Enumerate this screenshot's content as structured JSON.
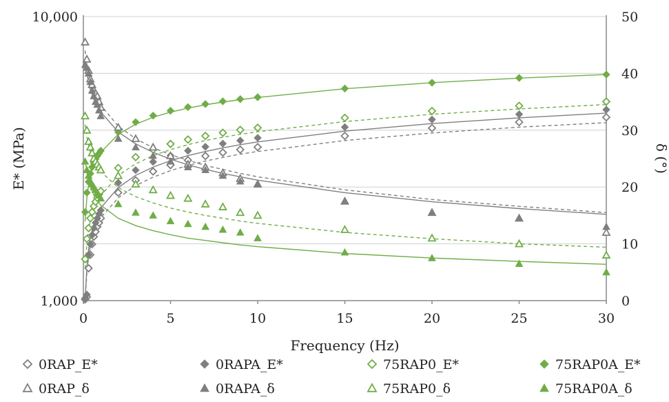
{
  "chart_data": {
    "type": "scatter",
    "title": "",
    "xlabel": "Frequency (Hz)",
    "ylabel_left": "E* (MPa)",
    "ylabel_right": "δ (°)",
    "xlim": [
      0,
      30
    ],
    "ylim_left": [
      1000,
      10000
    ],
    "ylim_right": [
      0,
      50
    ],
    "left_scale": "log",
    "grid": true,
    "legend_position": "bottom",
    "x_ticks": [
      "0",
      "5",
      "10",
      "15",
      "20",
      "25",
      "30"
    ],
    "y_left_ticks": [
      "1,000",
      "10,000"
    ],
    "y_right_ticks": [
      "0",
      "10",
      "20",
      "30",
      "40",
      "50"
    ],
    "x": [
      0.1,
      0.2,
      0.3,
      0.4,
      0.5,
      0.6,
      0.7,
      0.8,
      0.9,
      1,
      2,
      3,
      4,
      5,
      6,
      7,
      8,
      9,
      10,
      15,
      20,
      25,
      30
    ],
    "series": [
      {
        "name": "0RAP_E*",
        "axis": "left",
        "color": "#7f7f7f",
        "marker": "diamond-open",
        "fit": "dashed",
        "values": [
          1010,
          1030,
          1300,
          1450,
          1580,
          1680,
          1750,
          1820,
          1880,
          1950,
          2400,
          2650,
          2850,
          3000,
          3120,
          3230,
          3320,
          3400,
          3470,
          3800,
          4050,
          4250,
          4420
        ],
        "fit_values": [
          1000,
          1250,
          1430,
          1550,
          1650,
          1730,
          1800,
          1860,
          1910,
          1960,
          2300,
          2540,
          2720,
          2870,
          2990,
          3100,
          3190,
          3280,
          3350,
          3660,
          3890,
          4080,
          4230
        ]
      },
      {
        "name": "0RAPA_E*",
        "axis": "left",
        "color": "#7f7f7f",
        "marker": "diamond-filled",
        "fit": "solid",
        "values": [
          1020,
          1050,
          1450,
          1580,
          1700,
          1800,
          1880,
          1950,
          2020,
          2080,
          2600,
          2880,
          3080,
          3240,
          3370,
          3480,
          3570,
          3660,
          3740,
          4080,
          4340,
          4530,
          4700
        ],
        "fit_values": [
          1000,
          1320,
          1520,
          1660,
          1770,
          1860,
          1940,
          2010,
          2070,
          2120,
          2500,
          2760,
          2950,
          3110,
          3240,
          3350,
          3450,
          3540,
          3620,
          3950,
          4200,
          4400,
          4570
        ]
      },
      {
        "name": "75RAP0_E*",
        "axis": "left",
        "color": "#70ad47",
        "marker": "diamond-open",
        "fit": "dashed",
        "values": [
          1400,
          1650,
          1800,
          1950,
          2050,
          2150,
          2230,
          2300,
          2370,
          2430,
          2930,
          3200,
          3400,
          3560,
          3690,
          3800,
          3900,
          3990,
          4060,
          4400,
          4650,
          4850,
          5020
        ],
        "fit_values": [
          1300,
          1600,
          1780,
          1910,
          2010,
          2090,
          2170,
          2230,
          2290,
          2340,
          2760,
          3030,
          3240,
          3400,
          3540,
          3660,
          3760,
          3850,
          3930,
          4270,
          4530,
          4730,
          4900
        ]
      },
      {
        "name": "75RAP0A_E*",
        "axis": "left",
        "color": "#70ad47",
        "marker": "diamond-filled",
        "fit": "solid",
        "values": [
          2050,
          2400,
          2620,
          2800,
          2950,
          3050,
          3150,
          3230,
          3300,
          3370,
          3920,
          4250,
          4480,
          4660,
          4800,
          4920,
          5030,
          5120,
          5200,
          5580,
          5850,
          6080,
          6250
        ],
        "fit_values": [
          1900,
          2300,
          2560,
          2740,
          2880,
          3000,
          3100,
          3190,
          3260,
          3330,
          3850,
          4180,
          4420,
          4610,
          4760,
          4890,
          5000,
          5100,
          5190,
          5570,
          5850,
          6070,
          6250
        ]
      },
      {
        "name": "0RAP_δ",
        "axis": "right",
        "color": "#7f7f7f",
        "marker": "triangle-open",
        "fit": "dashed",
        "values": [
          45.5,
          42.5,
          40.5,
          39,
          38,
          37,
          36.5,
          36,
          35,
          34,
          30.5,
          28.5,
          27,
          25.5,
          24,
          23.5,
          22.5,
          21.5,
          20.5,
          17.5,
          15.5,
          14.5,
          12
        ],
        "fit_values": [
          44,
          41.5,
          39.8,
          38.5,
          37.5,
          36.7,
          36,
          35.4,
          34.9,
          34.4,
          30.7,
          28.5,
          26.9,
          25.7,
          24.7,
          23.8,
          23.1,
          22.4,
          21.8,
          19.5,
          17.8,
          16.6,
          15.5
        ]
      },
      {
        "name": "0RAPA_δ",
        "axis": "right",
        "color": "#7f7f7f",
        "marker": "triangle-filled",
        "fit": "solid",
        "values": [
          41.5,
          41,
          40,
          38.5,
          37,
          36,
          35,
          34.5,
          33.5,
          32.5,
          28.5,
          27,
          25.5,
          24.5,
          23.5,
          23,
          22,
          21,
          20.5,
          17.5,
          15.5,
          14.5,
          13
        ],
        "fit_values": [
          42.5,
          40,
          38.4,
          37.2,
          36.3,
          35.5,
          34.8,
          34.2,
          33.7,
          33.2,
          29.7,
          27.6,
          26.1,
          24.9,
          23.9,
          23.1,
          22.4,
          21.8,
          21.2,
          19,
          17.4,
          16.2,
          15.2
        ]
      },
      {
        "name": "75RAP0_δ",
        "axis": "right",
        "color": "#70ad47",
        "marker": "triangle-open",
        "fit": "dashed",
        "values": [
          32.5,
          30,
          28,
          27,
          26,
          25,
          24.5,
          24,
          23.5,
          23,
          22,
          20.5,
          19.5,
          18.5,
          18,
          17,
          16.5,
          15.5,
          15,
          12.5,
          11,
          10,
          8
        ],
        "fit_values": [
          31,
          28.8,
          27.3,
          26.2,
          25.4,
          24.7,
          24.1,
          23.6,
          23.1,
          22.7,
          19.9,
          18.3,
          17.2,
          16.3,
          15.6,
          15,
          14.5,
          14,
          13.6,
          12,
          10.9,
          10,
          9.4
        ]
      },
      {
        "name": "75RAP0A_δ",
        "axis": "right",
        "color": "#70ad47",
        "marker": "triangle-filled",
        "fit": "solid",
        "values": [
          24.5,
          23,
          22,
          21,
          20.5,
          20,
          19.5,
          19,
          18.5,
          18,
          17,
          15.5,
          15,
          14,
          13.5,
          13,
          12.5,
          12,
          11,
          8.5,
          7.5,
          6.5,
          5
        ],
        "fit_values": [
          25,
          22.6,
          21.1,
          20.1,
          19.3,
          18.6,
          18.1,
          17.6,
          17.2,
          16.8,
          14.5,
          13.2,
          12.3,
          11.6,
          11,
          10.6,
          10.2,
          9.8,
          9.5,
          8.3,
          7.5,
          6.9,
          6.4
        ]
      }
    ]
  }
}
